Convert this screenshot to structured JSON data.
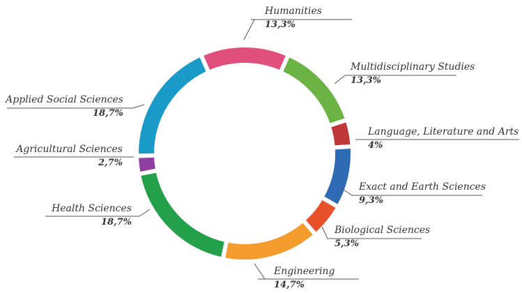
{
  "chart_data": {
    "type": "donut",
    "categories": [
      "Humanities",
      "Multidisciplinary Studies",
      "Language, Literature and Arts",
      "Exact and Earth Sciences",
      "Biological Sciences",
      "Engineering",
      "Health Sciences",
      "Agricultural Sciences",
      "Applied Social Sciences"
    ],
    "values": [
      13.3,
      13.3,
      4,
      9.3,
      5.3,
      14.7,
      18.7,
      2.7,
      18.7
    ],
    "value_labels": [
      "13,3%",
      "13,3%",
      "4%",
      "9,3%",
      "5,3%",
      "14,7%",
      "18,7%",
      "2,7%",
      "18,7%"
    ],
    "colors": [
      "#e04f7e",
      "#6ab344",
      "#c0373a",
      "#2f6bb5",
      "#e8502a",
      "#f59c2f",
      "#25a04a",
      "#8e3fa0",
      "#1a9ac7"
    ]
  }
}
